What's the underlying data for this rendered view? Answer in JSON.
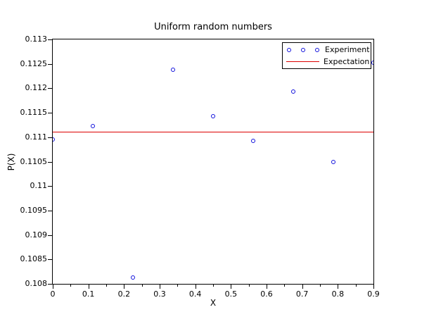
{
  "figure": {
    "background": "#ffffff"
  },
  "chart_data": {
    "type": "scatter",
    "title": "Uniform random numbers",
    "xlabel": "X",
    "ylabel": "P(X)",
    "xlim": [
      0,
      0.9
    ],
    "ylim": [
      0.108,
      0.113
    ],
    "grid": false,
    "x_ticks": {
      "values": [
        0,
        0.1,
        0.2,
        0.3,
        0.4,
        0.5,
        0.6,
        0.7,
        0.8,
        0.9
      ],
      "labels": [
        "0",
        "0.1",
        "0.2",
        "0.3",
        "0.4",
        "0.5",
        "0.6",
        "0.7",
        "0.8",
        "0.9"
      ],
      "minor_values": [
        0.05,
        0.15,
        0.25,
        0.35,
        0.45,
        0.55,
        0.65,
        0.75,
        0.85
      ]
    },
    "y_ticks": {
      "values": [
        0.113,
        0.1125,
        0.112,
        0.1115,
        0.111,
        0.1105,
        0.11,
        0.1095,
        0.109,
        0.1085,
        0.108
      ],
      "labels": [
        "0.113",
        "0.1125",
        "0.112",
        "0.1115",
        "0.111",
        "0.1105",
        "0.11",
        "0.1095",
        "0.109",
        "0.1085",
        "0.108"
      ]
    },
    "series": [
      {
        "name": "Experiment",
        "type": "scatter",
        "marker": "open-circle",
        "color": "#1111dd",
        "x": [
          0,
          0.1125,
          0.225,
          0.3375,
          0.45,
          0.5625,
          0.675,
          0.7875,
          0.9
        ],
        "y": [
          0.11095,
          0.11122,
          0.10812,
          0.11238,
          0.11142,
          0.11092,
          0.11192,
          0.11048,
          0.11252
        ]
      },
      {
        "name": "Expectation",
        "type": "hline",
        "color": "#dd0000",
        "y": 0.111111
      }
    ],
    "legend": {
      "position": "top-right",
      "entries": [
        "Experiment",
        "Expectation"
      ]
    }
  }
}
